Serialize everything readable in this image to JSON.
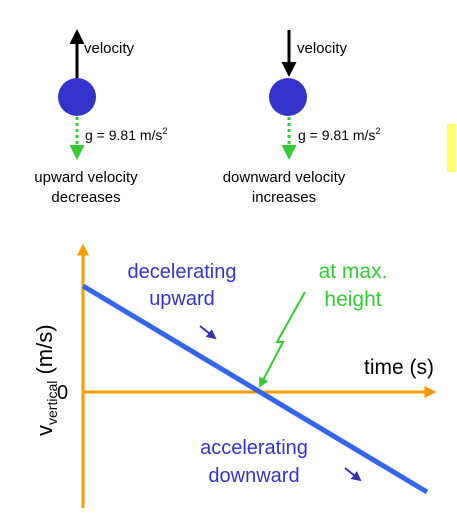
{
  "top_panel": {
    "left": {
      "velocity_label": "velocity",
      "g_label": "g = 9.81 m/s",
      "g_exponent": "2",
      "caption_line1": "upward velocity",
      "caption_line2": "decreases"
    },
    "right": {
      "velocity_label": "velocity",
      "g_label": "g = 9.81 m/s",
      "g_exponent": "2",
      "caption_line1": "downward velocity",
      "caption_line2": "increases"
    }
  },
  "graph": {
    "y_axis_label_main": "v",
    "y_axis_label_sub": "vertical",
    "y_axis_label_unit": " (m/s)",
    "x_axis_label": "time (s)",
    "zero_label": "0",
    "annotations": {
      "decelerating_line1": "decelerating",
      "decelerating_line2": "upward",
      "max_height_line1": "at max.",
      "max_height_line2": "height",
      "accelerating_line1": "accelerating",
      "accelerating_line2": "downward"
    }
  },
  "colors": {
    "ball": "#3333cc",
    "gravity_arrow": "#33cc33",
    "axes": "#ff9900",
    "velocity_line": "#3366ee",
    "annotation_text": "#3333cc",
    "max_height_text": "#33cc33",
    "velocity_arrow": "#000000",
    "highlight_marker": "#ffff66"
  }
}
